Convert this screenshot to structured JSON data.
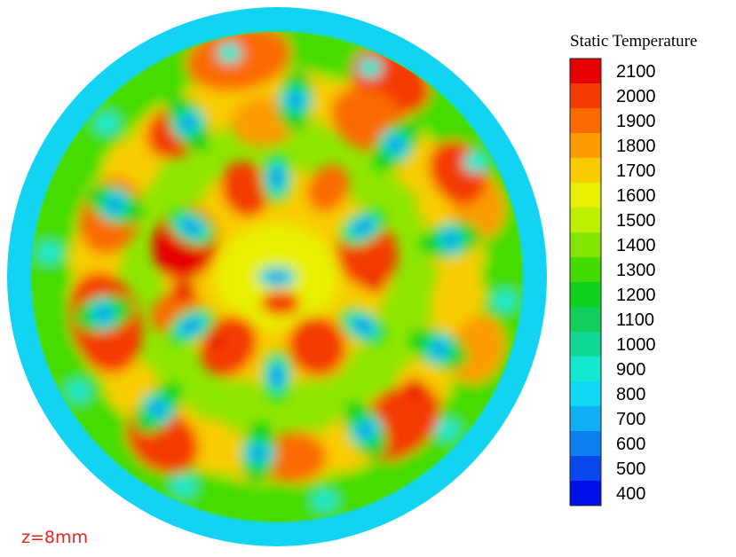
{
  "chart_data": {
    "type": "heatmap",
    "title": "",
    "legend": {
      "title": "Static Temperature",
      "placement": "right",
      "ticks": [
        2100,
        2000,
        1900,
        1800,
        1700,
        1600,
        1500,
        1400,
        1300,
        1200,
        1100,
        1000,
        900,
        800,
        700,
        600,
        500,
        400
      ],
      "tick_labels": [
        "2100",
        "2000",
        "1900",
        "1800",
        "1700",
        "1600",
        "1500",
        "1400",
        "1300",
        "1200",
        "1100",
        "1000",
        "900",
        "800",
        "700",
        "600",
        "500",
        "400"
      ],
      "colors": [
        "#e60000",
        "#f43a00",
        "#fa6a00",
        "#fc9c00",
        "#f8cc00",
        "#e8ef00",
        "#bcef00",
        "#84e600",
        "#44dc00",
        "#10d21e",
        "#10cf5a",
        "#12d896",
        "#14e8d0",
        "#10d8f2",
        "#10aef4",
        "#0c7ef0",
        "#0848ec",
        "#0010e8"
      ]
    },
    "annotation": "z=8mm",
    "field": {
      "shape": "circular cross-section",
      "range": [
        400,
        2100
      ],
      "background": 1450,
      "outer_ring": 780,
      "notes": "nozzle jets (blue lobes) in outer and middle rings; hot regions (orange/red) between jets"
    }
  }
}
